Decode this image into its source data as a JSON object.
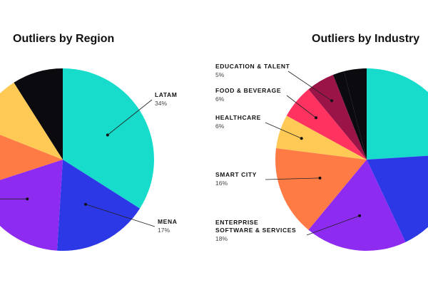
{
  "colors": {
    "teal": "#17DCCB",
    "blue": "#2C38E6",
    "purple": "#8E2BF0",
    "orange": "#FF7B45",
    "yellow": "#FFC955",
    "black": "#0B0B0F",
    "pink": "#FF3260",
    "maroon": "#9A1448",
    "text": "#111111",
    "subtext": "#444444"
  },
  "chart_data": [
    {
      "type": "pie",
      "title": "Outliers by Region",
      "slices": [
        {
          "name": "LATAM",
          "value": 34,
          "value_label": "34%",
          "color": "#17DCCB"
        },
        {
          "name": "MENA",
          "value": 17,
          "value_label": "17%",
          "color": "#2C38E6"
        },
        {
          "name": "",
          "value": 19,
          "value_label": "",
          "color": "#8E2BF0"
        },
        {
          "name": "",
          "value": 11,
          "value_label": "",
          "color": "#FF7B45"
        },
        {
          "name": "",
          "value": 10,
          "value_label": "",
          "color": "#FFC955"
        },
        {
          "name": "",
          "value": 9,
          "value_label": "",
          "color": "#0B0B0F"
        }
      ]
    },
    {
      "type": "pie",
      "title": "Outliers by Industry",
      "slices": [
        {
          "name": "",
          "value": 24,
          "value_label": "",
          "color": "#17DCCB"
        },
        {
          "name": "",
          "value": 19,
          "value_label": "",
          "color": "#2C38E6"
        },
        {
          "name": "ENTERPRISE SOFTWARE & SERVICES",
          "value": 18,
          "value_label": "18%",
          "color": "#8E2BF0"
        },
        {
          "name": "SMART CITY",
          "value": 16,
          "value_label": "16%",
          "color": "#FF7B45"
        },
        {
          "name": "HEALTHCARE",
          "value": 6,
          "value_label": "6%",
          "color": "#FFC955"
        },
        {
          "name": "FOOD & BEVERAGE",
          "value": 6,
          "value_label": "6%",
          "color": "#FF3260"
        },
        {
          "name": "EDUCATION & TALENT",
          "value": 5,
          "value_label": "5%",
          "color": "#9A1448"
        },
        {
          "name": "",
          "value": 2,
          "value_label": "",
          "color": "#0B0B0F"
        },
        {
          "name": "",
          "value": 4,
          "value_label": "",
          "color": "#0B0B0F"
        }
      ]
    }
  ]
}
